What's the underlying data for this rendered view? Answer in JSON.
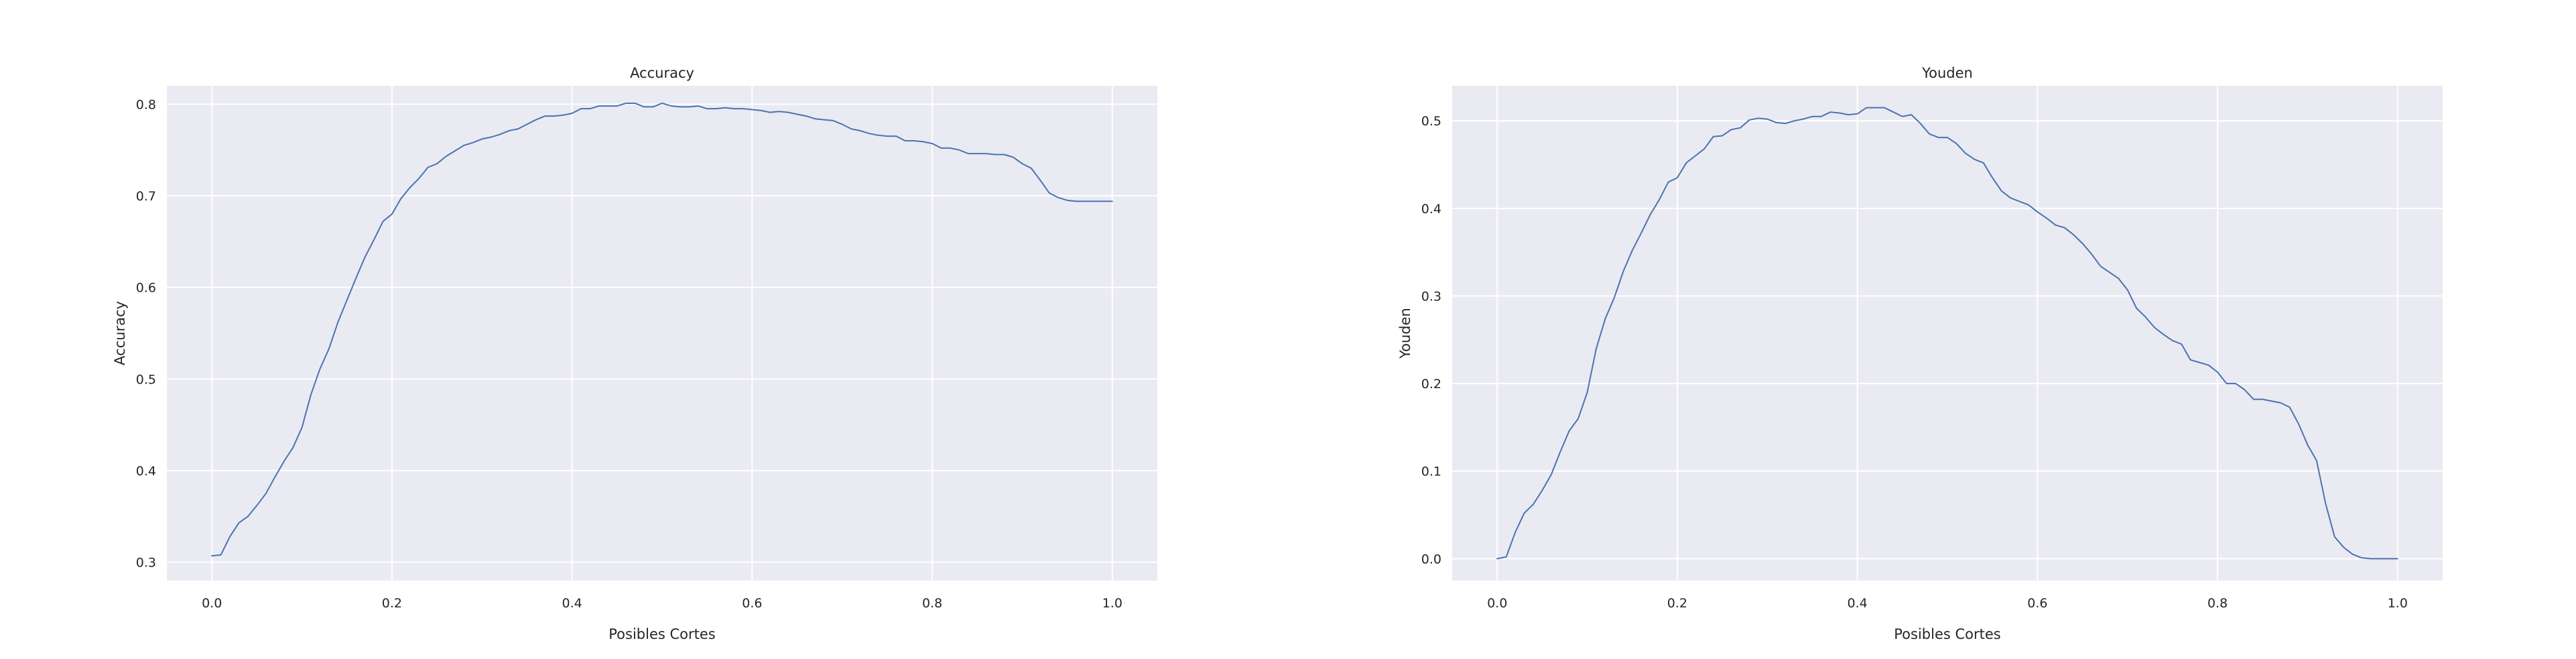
{
  "chart_data": [
    {
      "type": "line",
      "title": "Accuracy",
      "xlabel": "Posibles Cortes",
      "ylabel": "Accuracy",
      "xlim": [
        -0.05,
        1.05
      ],
      "ylim": [
        0.28,
        0.82
      ],
      "xticks": [
        0.0,
        0.2,
        0.4,
        0.6,
        0.8,
        1.0
      ],
      "xtick_labels": [
        "0.0",
        "0.2",
        "0.4",
        "0.6",
        "0.8",
        "1.0"
      ],
      "yticks": [
        0.3,
        0.4,
        0.5,
        0.6,
        0.7,
        0.8
      ],
      "ytick_labels": [
        "0.3",
        "0.4",
        "0.5",
        "0.6",
        "0.7",
        "0.8"
      ],
      "grid": true,
      "line_color": "#4c72b0",
      "background_color": "#eaeaf2",
      "series": [
        {
          "x": [
            0.0,
            0.01,
            0.02,
            0.03,
            0.04,
            0.05,
            0.06,
            0.07,
            0.08,
            0.09,
            0.1,
            0.11,
            0.12,
            0.13,
            0.14,
            0.15,
            0.16,
            0.17,
            0.18,
            0.19,
            0.2,
            0.21,
            0.22,
            0.23,
            0.24,
            0.25,
            0.26,
            0.27,
            0.28,
            0.29,
            0.3,
            0.31,
            0.32,
            0.33,
            0.34,
            0.35,
            0.36,
            0.37,
            0.38,
            0.39,
            0.4,
            0.41,
            0.42,
            0.43,
            0.44,
            0.45,
            0.46,
            0.47,
            0.48,
            0.49,
            0.5,
            0.51,
            0.52,
            0.53,
            0.54,
            0.55,
            0.56,
            0.57,
            0.58,
            0.59,
            0.6,
            0.61,
            0.62,
            0.63,
            0.64,
            0.65,
            0.66,
            0.67,
            0.68,
            0.69,
            0.7,
            0.71,
            0.72,
            0.73,
            0.74,
            0.75,
            0.76,
            0.77,
            0.78,
            0.79,
            0.8,
            0.81,
            0.82,
            0.83,
            0.84,
            0.85,
            0.86,
            0.87,
            0.88,
            0.89,
            0.9,
            0.91,
            0.92,
            0.93,
            0.94,
            0.95,
            0.96,
            0.97,
            0.98,
            0.99,
            1.0
          ],
          "y": [
            0.307,
            0.308,
            0.328,
            0.343,
            0.35,
            0.362,
            0.375,
            0.393,
            0.41,
            0.425,
            0.447,
            0.483,
            0.511,
            0.533,
            0.562,
            0.586,
            0.61,
            0.633,
            0.652,
            0.672,
            0.68,
            0.697,
            0.709,
            0.719,
            0.731,
            0.735,
            0.743,
            0.749,
            0.755,
            0.758,
            0.762,
            0.764,
            0.767,
            0.771,
            0.773,
            0.778,
            0.783,
            0.787,
            0.787,
            0.788,
            0.79,
            0.795,
            0.795,
            0.798,
            0.798,
            0.798,
            0.801,
            0.801,
            0.797,
            0.797,
            0.801,
            0.798,
            0.797,
            0.797,
            0.798,
            0.795,
            0.795,
            0.796,
            0.795,
            0.795,
            0.794,
            0.793,
            0.791,
            0.792,
            0.791,
            0.789,
            0.787,
            0.784,
            0.783,
            0.782,
            0.778,
            0.773,
            0.771,
            0.768,
            0.766,
            0.765,
            0.765,
            0.76,
            0.76,
            0.759,
            0.757,
            0.752,
            0.752,
            0.75,
            0.746,
            0.746,
            0.746,
            0.745,
            0.745,
            0.742,
            0.735,
            0.73,
            0.717,
            0.703,
            0.698,
            0.695,
            0.694,
            0.694,
            0.694,
            0.694,
            0.694
          ]
        }
      ]
    },
    {
      "type": "line",
      "title": "Youden",
      "xlabel": "Posibles Cortes",
      "ylabel": "Youden",
      "xlim": [
        -0.05,
        1.05
      ],
      "ylim": [
        -0.025,
        0.54
      ],
      "xticks": [
        0.0,
        0.2,
        0.4,
        0.6,
        0.8,
        1.0
      ],
      "xtick_labels": [
        "0.0",
        "0.2",
        "0.4",
        "0.6",
        "0.8",
        "1.0"
      ],
      "yticks": [
        0.0,
        0.1,
        0.2,
        0.3,
        0.4,
        0.5
      ],
      "ytick_labels": [
        "0.0",
        "0.1",
        "0.2",
        "0.3",
        "0.4",
        "0.5"
      ],
      "grid": true,
      "line_color": "#4c72b0",
      "background_color": "#eaeaf2",
      "series": [
        {
          "x": [
            0.0,
            0.01,
            0.02,
            0.03,
            0.04,
            0.05,
            0.06,
            0.07,
            0.08,
            0.09,
            0.1,
            0.11,
            0.12,
            0.13,
            0.14,
            0.15,
            0.16,
            0.17,
            0.18,
            0.19,
            0.2,
            0.21,
            0.22,
            0.23,
            0.24,
            0.25,
            0.26,
            0.27,
            0.28,
            0.29,
            0.3,
            0.31,
            0.32,
            0.33,
            0.34,
            0.35,
            0.36,
            0.37,
            0.38,
            0.39,
            0.4,
            0.41,
            0.42,
            0.43,
            0.44,
            0.45,
            0.46,
            0.47,
            0.48,
            0.49,
            0.5,
            0.51,
            0.52,
            0.53,
            0.54,
            0.55,
            0.56,
            0.57,
            0.58,
            0.59,
            0.6,
            0.61,
            0.62,
            0.63,
            0.64,
            0.65,
            0.66,
            0.67,
            0.68,
            0.69,
            0.7,
            0.71,
            0.72,
            0.73,
            0.74,
            0.75,
            0.76,
            0.77,
            0.78,
            0.79,
            0.8,
            0.81,
            0.82,
            0.83,
            0.84,
            0.85,
            0.86,
            0.87,
            0.88,
            0.89,
            0.9,
            0.91,
            0.92,
            0.93,
            0.94,
            0.95,
            0.96,
            0.97,
            0.98,
            0.99,
            1.0
          ],
          "y": [
            0.0,
            0.002,
            0.03,
            0.052,
            0.062,
            0.078,
            0.096,
            0.122,
            0.146,
            0.16,
            0.19,
            0.24,
            0.274,
            0.298,
            0.328,
            0.352,
            0.372,
            0.393,
            0.41,
            0.43,
            0.435,
            0.452,
            0.46,
            0.468,
            0.482,
            0.483,
            0.49,
            0.492,
            0.501,
            0.503,
            0.502,
            0.498,
            0.497,
            0.5,
            0.502,
            0.505,
            0.505,
            0.51,
            0.509,
            0.507,
            0.508,
            0.515,
            0.515,
            0.515,
            0.51,
            0.505,
            0.507,
            0.497,
            0.485,
            0.481,
            0.481,
            0.474,
            0.463,
            0.456,
            0.452,
            0.435,
            0.42,
            0.412,
            0.408,
            0.404,
            0.396,
            0.389,
            0.381,
            0.378,
            0.37,
            0.36,
            0.348,
            0.334,
            0.327,
            0.32,
            0.307,
            0.286,
            0.276,
            0.264,
            0.256,
            0.249,
            0.245,
            0.227,
            0.224,
            0.221,
            0.213,
            0.2,
            0.2,
            0.193,
            0.182,
            0.182,
            0.18,
            0.178,
            0.173,
            0.154,
            0.13,
            0.112,
            0.063,
            0.025,
            0.013,
            0.005,
            0.001,
            0.0,
            0.0,
            0.0,
            0.0
          ]
        }
      ]
    }
  ]
}
